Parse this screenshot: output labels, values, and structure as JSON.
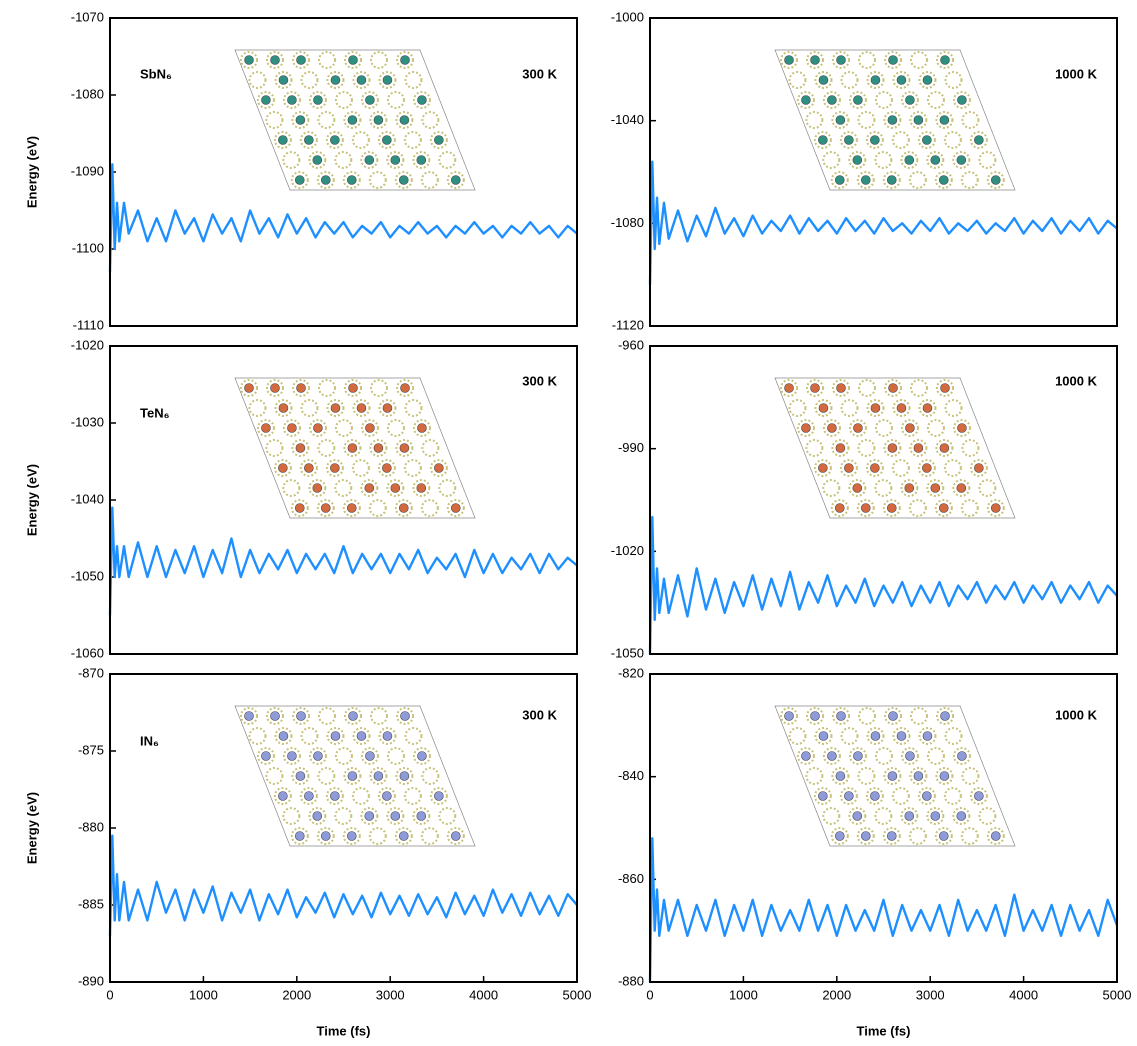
{
  "chart_data": [
    {
      "type": "line",
      "label": "SbN₆",
      "annotation": "300 K",
      "ylabel": "Energy (eV)",
      "x": [
        0,
        25,
        50,
        75,
        100,
        150,
        200,
        300,
        400,
        500,
        600,
        700,
        800,
        900,
        1000,
        1100,
        1200,
        1300,
        1400,
        1500,
        1600,
        1700,
        1800,
        1900,
        2000,
        2100,
        2200,
        2300,
        2400,
        2500,
        2600,
        2700,
        2800,
        2900,
        3000,
        3100,
        3200,
        3300,
        3400,
        3500,
        3600,
        3700,
        3800,
        3900,
        4000,
        4100,
        4200,
        4300,
        4400,
        4500,
        4600,
        4700,
        4800,
        4900,
        5000
      ],
      "series": [
        {
          "color": "#1e8fff",
          "values": [
            -1103,
            -1089,
            -1100,
            -1094,
            -1099,
            -1094,
            -1098,
            -1095,
            -1099,
            -1096,
            -1099,
            -1095,
            -1098,
            -1096,
            -1099,
            -1095.5,
            -1098,
            -1096,
            -1099,
            -1095,
            -1098,
            -1096,
            -1098.5,
            -1095.5,
            -1098,
            -1096,
            -1098.5,
            -1096.5,
            -1098,
            -1096.5,
            -1098.5,
            -1097,
            -1098,
            -1096.5,
            -1098.5,
            -1097,
            -1098,
            -1096.5,
            -1098,
            -1097,
            -1098.5,
            -1097,
            -1098,
            -1096.5,
            -1098,
            -1097,
            -1098.5,
            -1097,
            -1098,
            -1096.5,
            -1098,
            -1097,
            -1098.5,
            -1097,
            -1098
          ]
        }
      ],
      "xlim": [
        0,
        5000
      ],
      "ylim": [
        -1110,
        -1070
      ],
      "yticks": [
        -1110,
        -1100,
        -1090,
        -1080,
        -1070
      ]
    },
    {
      "type": "line",
      "annotation": "1000 K",
      "x": [
        0,
        25,
        50,
        75,
        100,
        150,
        200,
        300,
        400,
        500,
        600,
        700,
        800,
        900,
        1000,
        1100,
        1200,
        1300,
        1400,
        1500,
        1600,
        1700,
        1800,
        1900,
        2000,
        2100,
        2200,
        2300,
        2400,
        2500,
        2600,
        2700,
        2800,
        2900,
        3000,
        3100,
        3200,
        3300,
        3400,
        3500,
        3600,
        3700,
        3800,
        3900,
        4000,
        4100,
        4200,
        4300,
        4400,
        4500,
        4600,
        4700,
        4800,
        4900,
        5000
      ],
      "series": [
        {
          "color": "#1e8fff",
          "values": [
            -1104,
            -1056,
            -1090,
            -1070,
            -1088,
            -1072,
            -1086,
            -1075,
            -1087,
            -1077,
            -1085,
            -1074,
            -1084,
            -1078,
            -1085,
            -1077,
            -1084,
            -1079,
            -1083,
            -1077,
            -1084,
            -1078,
            -1083,
            -1079,
            -1084,
            -1078,
            -1083,
            -1079,
            -1084,
            -1078,
            -1083,
            -1080,
            -1084,
            -1079,
            -1083,
            -1078,
            -1084,
            -1080,
            -1083,
            -1079,
            -1084,
            -1080,
            -1083,
            -1078,
            -1084,
            -1079,
            -1083,
            -1078,
            -1084,
            -1079,
            -1083,
            -1078,
            -1084,
            -1079,
            -1082
          ]
        }
      ],
      "xlim": [
        0,
        5000
      ],
      "ylim": [
        -1120,
        -1000
      ],
      "yticks": [
        -1120,
        -1080,
        -1040,
        -1000
      ]
    },
    {
      "type": "line",
      "label": "TeN₆",
      "annotation": "300 K",
      "ylabel": "Energy (eV)",
      "x": [
        0,
        25,
        50,
        75,
        100,
        150,
        200,
        300,
        400,
        500,
        600,
        700,
        800,
        900,
        1000,
        1100,
        1200,
        1300,
        1400,
        1500,
        1600,
        1700,
        1800,
        1900,
        2000,
        2100,
        2200,
        2300,
        2400,
        2500,
        2600,
        2700,
        2800,
        2900,
        3000,
        3100,
        3200,
        3300,
        3400,
        3500,
        3600,
        3700,
        3800,
        3900,
        4000,
        4100,
        4200,
        4300,
        4400,
        4500,
        4600,
        4700,
        4800,
        4900,
        5000
      ],
      "series": [
        {
          "color": "#1e8fff",
          "values": [
            -1055,
            -1041,
            -1050,
            -1046,
            -1050,
            -1046,
            -1050,
            -1045.5,
            -1050,
            -1046,
            -1050,
            -1046.5,
            -1049.5,
            -1046,
            -1050,
            -1046.5,
            -1049.5,
            -1045,
            -1050,
            -1046.5,
            -1049.5,
            -1047,
            -1049,
            -1046.5,
            -1049.5,
            -1047,
            -1049,
            -1047,
            -1049.5,
            -1046,
            -1049.5,
            -1047,
            -1049,
            -1047,
            -1049.5,
            -1047,
            -1049,
            -1046.5,
            -1049.5,
            -1047.5,
            -1049,
            -1047,
            -1050,
            -1046.5,
            -1049.5,
            -1047,
            -1049.5,
            -1047.5,
            -1049,
            -1047,
            -1049.5,
            -1047,
            -1049,
            -1047.5,
            -1048.5
          ]
        }
      ],
      "xlim": [
        0,
        5000
      ],
      "ylim": [
        -1060,
        -1020
      ],
      "yticks": [
        -1060,
        -1050,
        -1040,
        -1030,
        -1020
      ]
    },
    {
      "type": "line",
      "annotation": "1000 K",
      "x": [
        0,
        25,
        50,
        75,
        100,
        150,
        200,
        300,
        400,
        500,
        600,
        700,
        800,
        900,
        1000,
        1100,
        1200,
        1300,
        1400,
        1500,
        1600,
        1700,
        1800,
        1900,
        2000,
        2100,
        2200,
        2300,
        2400,
        2500,
        2600,
        2700,
        2800,
        2900,
        3000,
        3100,
        3200,
        3300,
        3400,
        3500,
        3600,
        3700,
        3800,
        3900,
        4000,
        4100,
        4200,
        4300,
        4400,
        4500,
        4600,
        4700,
        4800,
        4900,
        5000
      ],
      "series": [
        {
          "color": "#1e8fff",
          "values": [
            -1050,
            -1010,
            -1040,
            -1025,
            -1038,
            -1028,
            -1038,
            -1027,
            -1039,
            -1025,
            -1037,
            -1028,
            -1038,
            -1029,
            -1036,
            -1027,
            -1037,
            -1028,
            -1036,
            -1026,
            -1037,
            -1029,
            -1035,
            -1027,
            -1036,
            -1030,
            -1035,
            -1028,
            -1036,
            -1030,
            -1035,
            -1029,
            -1036,
            -1030,
            -1035,
            -1029,
            -1036,
            -1030,
            -1034,
            -1029,
            -1035,
            -1030,
            -1034,
            -1029,
            -1035,
            -1030,
            -1034,
            -1029,
            -1035,
            -1030,
            -1034,
            -1029,
            -1035,
            -1030,
            -1033
          ]
        }
      ],
      "xlim": [
        0,
        5000
      ],
      "ylim": [
        -1050,
        -960
      ],
      "yticks": [
        -1050,
        -1020,
        -990,
        -960
      ]
    },
    {
      "type": "line",
      "label": "IN₆",
      "annotation": "300 K",
      "ylabel": "Energy (eV)",
      "xlabel": "Time (fs)",
      "x": [
        0,
        25,
        50,
        75,
        100,
        150,
        200,
        300,
        400,
        500,
        600,
        700,
        800,
        900,
        1000,
        1100,
        1200,
        1300,
        1400,
        1500,
        1600,
        1700,
        1800,
        1900,
        2000,
        2100,
        2200,
        2300,
        2400,
        2500,
        2600,
        2700,
        2800,
        2900,
        3000,
        3100,
        3200,
        3300,
        3400,
        3500,
        3600,
        3700,
        3800,
        3900,
        4000,
        4100,
        4200,
        4300,
        4400,
        4500,
        4600,
        4700,
        4800,
        4900,
        5000
      ],
      "series": [
        {
          "color": "#1e8fff",
          "values": [
            -887,
            -880.5,
            -886,
            -883,
            -886,
            -883.5,
            -886,
            -884,
            -886,
            -883.5,
            -885.5,
            -884,
            -886,
            -884,
            -885.5,
            -883.8,
            -886,
            -884.2,
            -885.5,
            -884,
            -886,
            -884.3,
            -885.6,
            -884,
            -885.8,
            -884.5,
            -885.5,
            -884.2,
            -885.8,
            -884.3,
            -885.6,
            -884.4,
            -885.8,
            -884.2,
            -885.6,
            -884.4,
            -885.7,
            -884.3,
            -885.6,
            -884.5,
            -885.8,
            -884.2,
            -885.6,
            -884.4,
            -885.7,
            -884,
            -885.5,
            -884.3,
            -885.7,
            -884.2,
            -885.6,
            -884.4,
            -885.7,
            -884.3,
            -885
          ]
        }
      ],
      "xlim": [
        0,
        5000
      ],
      "xticks": [
        0,
        1000,
        2000,
        3000,
        4000,
        5000
      ],
      "ylim": [
        -890,
        -870
      ],
      "yticks": [
        -890,
        -885,
        -880,
        -875,
        -870
      ]
    },
    {
      "type": "line",
      "annotation": "1000 K",
      "xlabel": "Time (fs)",
      "x": [
        0,
        25,
        50,
        75,
        100,
        150,
        200,
        300,
        400,
        500,
        600,
        700,
        800,
        900,
        1000,
        1100,
        1200,
        1300,
        1400,
        1500,
        1600,
        1700,
        1800,
        1900,
        2000,
        2100,
        2200,
        2300,
        2400,
        2500,
        2600,
        2700,
        2800,
        2900,
        3000,
        3100,
        3200,
        3300,
        3400,
        3500,
        3600,
        3700,
        3800,
        3900,
        4000,
        4100,
        4200,
        4300,
        4400,
        4500,
        4600,
        4700,
        4800,
        4900,
        5000
      ],
      "series": [
        {
          "color": "#1e8fff",
          "values": [
            -880,
            -852,
            -870,
            -862,
            -871,
            -864,
            -870,
            -864,
            -871,
            -865,
            -870,
            -864,
            -871,
            -865,
            -870,
            -864,
            -871,
            -865,
            -870,
            -866,
            -870,
            -864,
            -870,
            -865,
            -871,
            -865,
            -870,
            -866,
            -870,
            -864,
            -871,
            -865,
            -870,
            -866,
            -870,
            -865,
            -871,
            -864,
            -870,
            -866,
            -870,
            -865,
            -871,
            -863,
            -870,
            -866,
            -870,
            -865,
            -871,
            -865,
            -870,
            -866,
            -871,
            -864,
            -869
          ]
        }
      ],
      "xlim": [
        0,
        5000
      ],
      "xticks": [
        0,
        1000,
        2000,
        3000,
        4000,
        5000
      ],
      "ylim": [
        -880,
        -820
      ],
      "yticks": [
        -880,
        -860,
        -840,
        -820
      ]
    }
  ]
}
